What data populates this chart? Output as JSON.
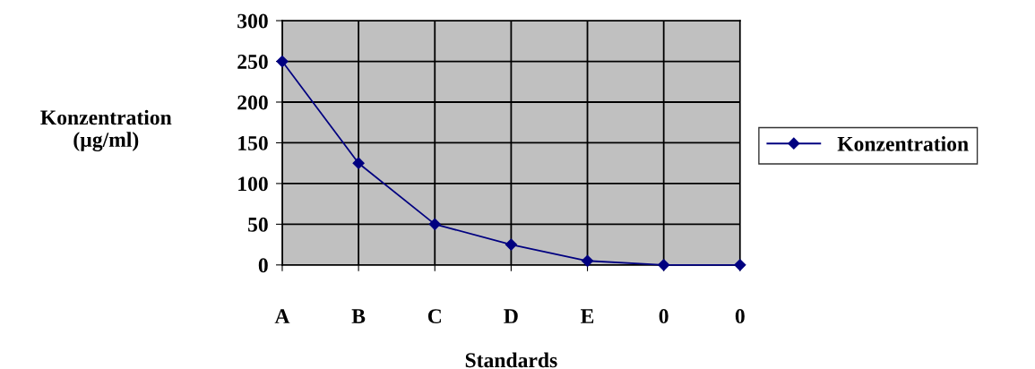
{
  "chart_data": {
    "type": "line",
    "xlabel": "Standards",
    "ylabel": "Konzentration\n(µg/ml)",
    "categories": [
      "A",
      "B",
      "C",
      "D",
      "E",
      "0",
      "0"
    ],
    "series": [
      {
        "name": "Konzentration",
        "color": "#000080",
        "values": [
          250,
          125,
          50,
          25,
          5,
          0,
          0
        ]
      }
    ],
    "ylim": [
      0,
      300
    ],
    "yticks": [
      0,
      50,
      100,
      150,
      200,
      250,
      300
    ],
    "grid": true,
    "legend": "right",
    "marker": "diamond",
    "line_style": "solid"
  }
}
